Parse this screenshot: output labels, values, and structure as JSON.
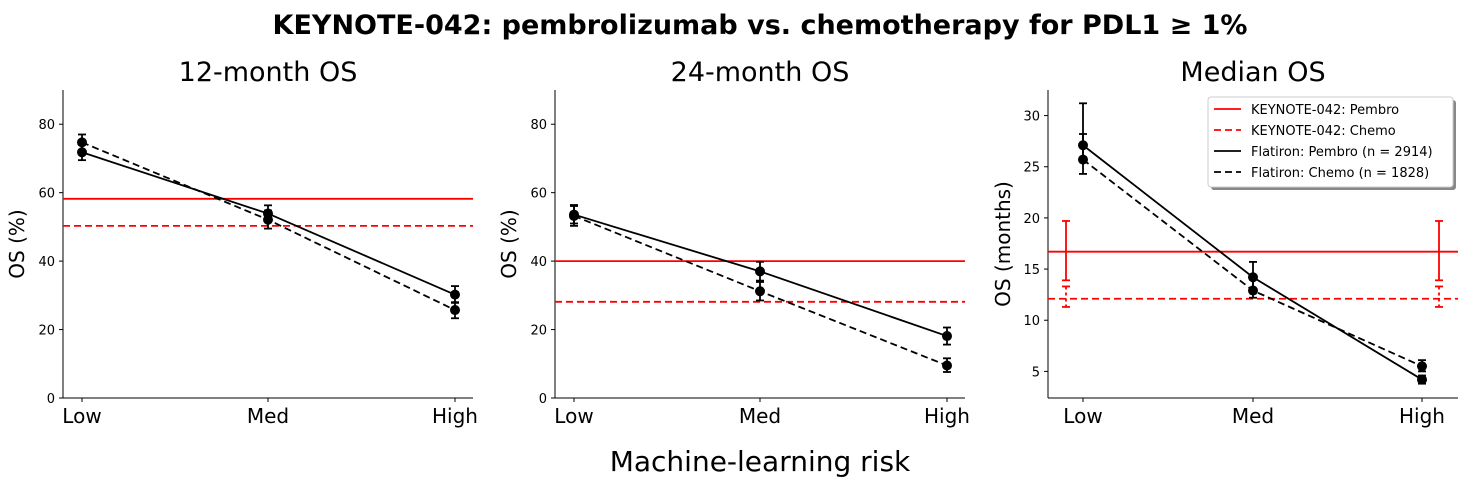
{
  "figure": {
    "suptitle": "KEYNOTE-042: pembrolizumab vs. chemotherapy for PDL1 ≥ 1%",
    "xlabel": "Machine-learning risk"
  },
  "legend": {
    "placement": "top-right",
    "panel": "Median OS",
    "entries": [
      {
        "label": "KEYNOTE-042: Pembro",
        "color": "#ff0000",
        "style": "solid"
      },
      {
        "label": "KEYNOTE-042: Chemo",
        "color": "#ff0000",
        "style": "dashed"
      },
      {
        "label": "Flatiron: Pembro (n = 2914)",
        "color": "#000000",
        "style": "solid"
      },
      {
        "label": "Flatiron: Chemo (n = 1828)",
        "color": "#000000",
        "style": "dashed"
      }
    ]
  },
  "colors": {
    "keynote": "#ff0000",
    "flatiron": "#000000"
  },
  "chart_data": [
    {
      "type": "line",
      "title": "12-month OS",
      "ylabel": "OS (%)",
      "categories": [
        "Low",
        "Med",
        "High"
      ],
      "ylim": [
        0,
        90
      ],
      "yticks": [
        0,
        20,
        40,
        60,
        80
      ],
      "grid": false,
      "series": [
        {
          "name": "Flatiron: Pembro (n = 2914)",
          "values": [
            71.8,
            53.9,
            30.2
          ],
          "err_low": [
            69.5,
            51.5,
            27.8
          ],
          "err_high": [
            74.0,
            56.3,
            32.7
          ]
        },
        {
          "name": "Flatiron: Chemo (n = 1828)",
          "values": [
            74.7,
            52.1,
            25.7
          ],
          "err_low": [
            72.4,
            49.5,
            23.3
          ],
          "err_high": [
            77.0,
            54.8,
            28.0
          ]
        }
      ],
      "reference_lines": [
        {
          "name": "KEYNOTE-042: Pembro",
          "value": 58.2
        },
        {
          "name": "KEYNOTE-042: Chemo",
          "value": 50.3
        }
      ]
    },
    {
      "type": "line",
      "title": "24-month OS",
      "ylabel": "OS (%)",
      "categories": [
        "Low",
        "Med",
        "High"
      ],
      "ylim": [
        0,
        90
      ],
      "yticks": [
        0,
        20,
        40,
        60,
        80
      ],
      "grid": false,
      "series": [
        {
          "name": "Flatiron: Pembro (n = 2914)",
          "values": [
            53.6,
            37.0,
            18.1
          ],
          "err_low": [
            51.0,
            34.3,
            15.6
          ],
          "err_high": [
            56.4,
            39.8,
            20.6
          ]
        },
        {
          "name": "Flatiron: Chemo (n = 1828)",
          "values": [
            53.2,
            31.2,
            9.5
          ],
          "err_low": [
            50.3,
            28.5,
            7.6
          ],
          "err_high": [
            56.1,
            33.9,
            11.6
          ]
        }
      ],
      "reference_lines": [
        {
          "name": "KEYNOTE-042: Pembro",
          "value": 40.0
        },
        {
          "name": "KEYNOTE-042: Chemo",
          "value": 28.1
        }
      ]
    },
    {
      "type": "line",
      "title": "Median OS",
      "ylabel": "OS (months)",
      "categories": [
        "Low",
        "Med",
        "High"
      ],
      "ylim": [
        2.4,
        32.5
      ],
      "yticks": [
        5,
        10,
        15,
        20,
        25,
        30
      ],
      "grid": false,
      "series": [
        {
          "name": "Flatiron: Pembro (n = 2914)",
          "values": [
            27.1,
            14.2,
            4.2
          ],
          "err_low": [
            25.8,
            12.9,
            3.8
          ],
          "err_high": [
            31.2,
            15.7,
            4.6
          ]
        },
        {
          "name": "Flatiron: Chemo (n = 1828)",
          "values": [
            25.7,
            12.9,
            5.5
          ],
          "err_low": [
            24.3,
            12.2,
            5.0
          ],
          "err_high": [
            28.2,
            14.0,
            6.1
          ]
        }
      ],
      "reference_lines": [
        {
          "name": "KEYNOTE-042: Pembro",
          "value": 16.7,
          "ci": [
            13.9,
            19.7
          ]
        },
        {
          "name": "KEYNOTE-042: Chemo",
          "value": 12.1,
          "ci": [
            11.3,
            13.3
          ]
        }
      ]
    }
  ]
}
